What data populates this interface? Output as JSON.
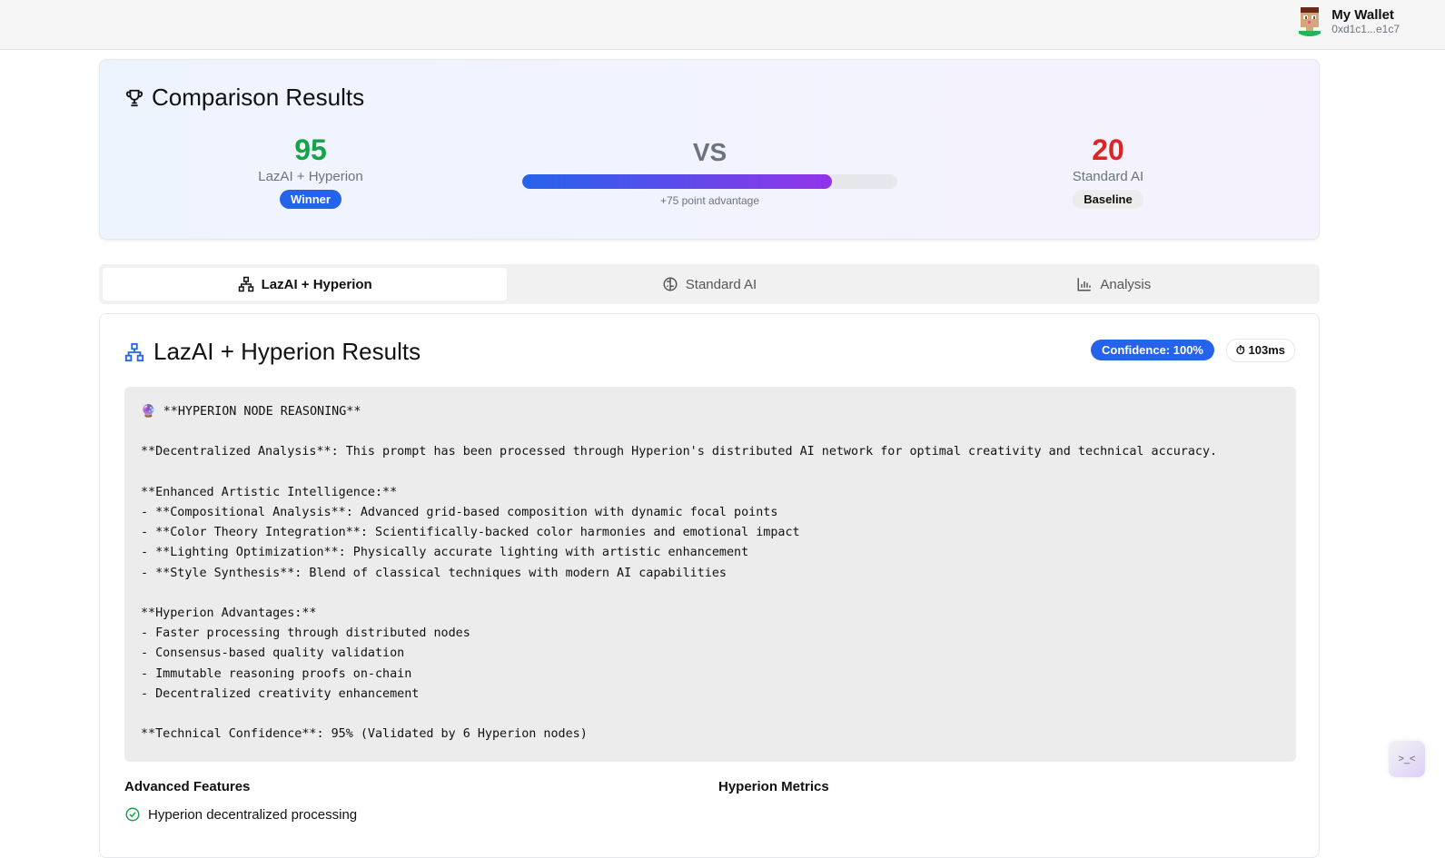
{
  "header": {
    "wallet_name": "My Wallet",
    "wallet_address": "0xd1c1...e1c7"
  },
  "comparison": {
    "title": "Comparison Results",
    "left": {
      "score": "95",
      "label": "LazAI + Hyperion",
      "badge": "Winner"
    },
    "vs": "VS",
    "progress_percent": 82.6,
    "advantage": "+75 point advantage",
    "right": {
      "score": "20",
      "label": "Standard AI",
      "badge": "Baseline"
    },
    "colors": {
      "winner": "#16a34a",
      "baseline": "#dc2626",
      "accent": "#2563eb"
    }
  },
  "tabs": [
    {
      "label": "LazAI + Hyperion",
      "icon": "network-icon",
      "active": true
    },
    {
      "label": "Standard AI",
      "icon": "brain-icon"
    },
    {
      "label": "Analysis",
      "icon": "bar-chart-icon"
    }
  ],
  "results": {
    "title": "LazAI + Hyperion Results",
    "confidence": "Confidence: 100%",
    "time": "103ms",
    "reasoning": "🔮 **HYPERION NODE REASONING**\n\n**Decentralized Analysis**: This prompt has been processed through Hyperion's distributed AI network for optimal creativity and technical accuracy.\n\n**Enhanced Artistic Intelligence:**\n- **Compositional Analysis**: Advanced grid-based composition with dynamic focal points\n- **Color Theory Integration**: Scientifically-backed color harmonies and emotional impact\n- **Lighting Optimization**: Physically accurate lighting with artistic enhancement\n- **Style Synthesis**: Blend of classical techniques with modern AI capabilities\n\n**Hyperion Advantages:**\n- Faster processing through distributed nodes\n- Consensus-based quality validation\n- Immutable reasoning proofs on-chain\n- Decentralized creativity enhancement\n\n**Technical Confidence**: 95% (Validated by 6 Hyperion nodes)",
    "features_title": "Advanced Features",
    "features": [
      "Hyperion decentralized processing"
    ],
    "metrics_title": "Hyperion Metrics"
  },
  "float_button": ">_<"
}
